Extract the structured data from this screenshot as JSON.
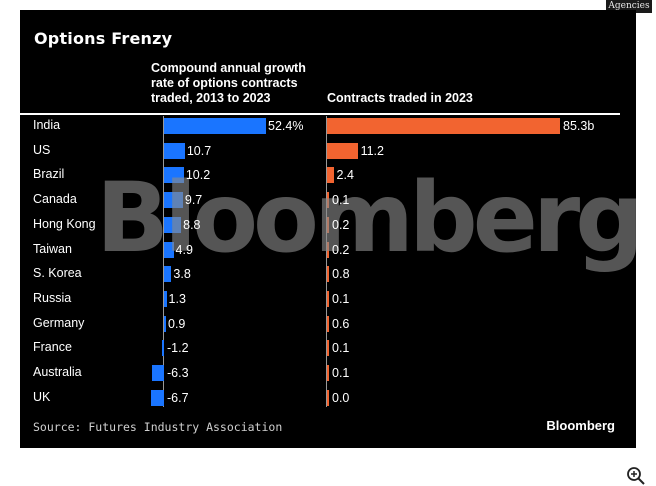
{
  "agency_tag": "Agencies",
  "watermark": "Bloomberg",
  "footer": {
    "source": "Source: Futures Industry Association",
    "brand": "Bloomberg"
  },
  "colors": {
    "background": "#000000",
    "cagr_bar": "#1a75ff",
    "contracts_bar": "#f26430"
  },
  "icons": {
    "zoom": "zoom-in-icon"
  },
  "chart_data": [
    {
      "type": "bar",
      "orientation": "horizontal",
      "title": "Options Frenzy",
      "subtitle": "Compound annual growth rate of options contracts traded, 2013 to 2023",
      "categories": [
        "India",
        "US",
        "Brazil",
        "Canada",
        "Hong Kong",
        "Taiwan",
        "S. Korea",
        "Russia",
        "Germany",
        "France",
        "Australia",
        "UK"
      ],
      "values": [
        52.4,
        10.7,
        10.2,
        9.7,
        8.8,
        4.9,
        3.8,
        1.3,
        0.9,
        -1.2,
        -6.3,
        -6.7
      ],
      "labels": [
        "52.4%",
        "10.7",
        "10.2",
        "9.7",
        "8.8",
        "4.9",
        "3.8",
        "1.3",
        "0.9",
        "-1.2",
        "-6.3",
        "-6.7"
      ],
      "unit": "%"
    },
    {
      "type": "bar",
      "orientation": "horizontal",
      "title": "Contracts traded in 2023",
      "categories": [
        "India",
        "US",
        "Brazil",
        "Canada",
        "Hong Kong",
        "Taiwan",
        "S. Korea",
        "Russia",
        "Germany",
        "France",
        "Australia",
        "UK"
      ],
      "values": [
        85.3,
        11.2,
        2.4,
        0.1,
        0.2,
        0.2,
        0.8,
        0.1,
        0.6,
        0.1,
        0.1,
        0.0
      ],
      "labels": [
        "85.3b",
        "11.2",
        "2.4",
        "0.1",
        "0.2",
        "0.2",
        "0.8",
        "0.1",
        "0.6",
        "0.1",
        "0.1",
        "0.0"
      ],
      "unit": "billion"
    }
  ]
}
